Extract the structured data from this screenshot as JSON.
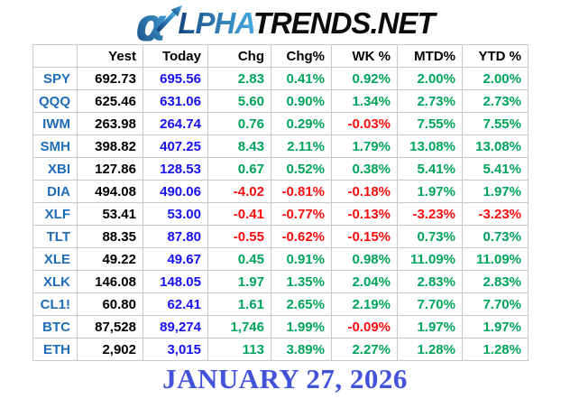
{
  "logo": {
    "icon": "alpha-arrow",
    "part1": "LPHA",
    "part2": "TRENDS.NET"
  },
  "colors": {
    "ticker_blue": "#1E6CB8",
    "today_blue": "#1611F0",
    "positive_green": "#00A45C",
    "negative_red": "#FB0D0D",
    "date_blue": "#4353D9",
    "logo_blue_dark": "#16497F",
    "logo_blue_light": "#45A7E0",
    "grid_gray": "#C9C9C9"
  },
  "date_caption": "JANUARY 27, 2026",
  "chart_data": {
    "type": "table",
    "columns": [
      "",
      "Yest",
      "Today",
      "Chg",
      "Chg%",
      "WK %",
      "MTD%",
      "YTD %"
    ],
    "rows": [
      [
        "SPY",
        "692.73",
        "695.56",
        "2.83",
        "0.41%",
        "0.92%",
        "2.00%",
        "2.00%"
      ],
      [
        "QQQ",
        "625.46",
        "631.06",
        "5.60",
        "0.90%",
        "1.34%",
        "2.73%",
        "2.73%"
      ],
      [
        "IWM",
        "263.98",
        "264.74",
        "0.76",
        "0.29%",
        "-0.03%",
        "7.55%",
        "7.55%"
      ],
      [
        "SMH",
        "398.82",
        "407.25",
        "8.43",
        "2.11%",
        "1.79%",
        "13.08%",
        "13.08%"
      ],
      [
        "XBI",
        "127.86",
        "128.53",
        "0.67",
        "0.52%",
        "0.38%",
        "5.41%",
        "5.41%"
      ],
      [
        "DIA",
        "494.08",
        "490.06",
        "-4.02",
        "-0.81%",
        "-0.18%",
        "1.97%",
        "1.97%"
      ],
      [
        "XLF",
        "53.41",
        "53.00",
        "-0.41",
        "-0.77%",
        "-0.13%",
        "-3.23%",
        "-3.23%"
      ],
      [
        "TLT",
        "88.35",
        "87.80",
        "-0.55",
        "-0.62%",
        "-0.15%",
        "0.73%",
        "0.73%"
      ],
      [
        "XLE",
        "49.22",
        "49.67",
        "0.45",
        "0.91%",
        "0.98%",
        "11.09%",
        "11.09%"
      ],
      [
        "XLK",
        "146.08",
        "148.05",
        "1.97",
        "1.35%",
        "2.04%",
        "2.83%",
        "2.83%"
      ],
      [
        "CL1!",
        "60.80",
        "62.41",
        "1.61",
        "2.65%",
        "2.19%",
        "7.70%",
        "7.70%"
      ],
      [
        "BTC",
        "87,528",
        "89,274",
        "1,746",
        "1.99%",
        "-0.09%",
        "1.97%",
        "1.97%"
      ],
      [
        "ETH",
        "2,902",
        "3,015",
        "113",
        "3.89%",
        "2.27%",
        "1.28%",
        "1.28%"
      ]
    ]
  }
}
